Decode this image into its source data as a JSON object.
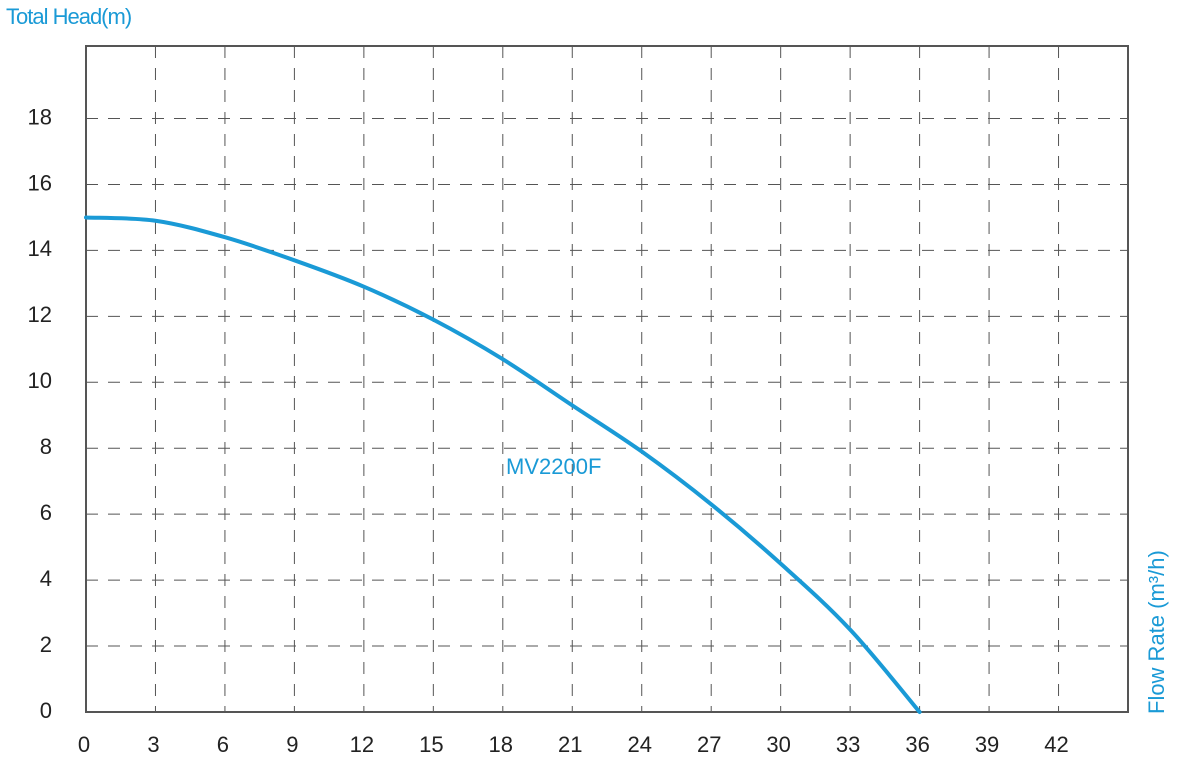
{
  "chart_data": {
    "type": "line",
    "y_label": "Total Head(m)",
    "x_label": "Flow Rate (m³/h)",
    "x": [
      0,
      3,
      6,
      9,
      12,
      15,
      18,
      21,
      24,
      27,
      30,
      33,
      36
    ],
    "series": [
      {
        "name": "MV2200F",
        "color": "#1a9ad6",
        "values": [
          15.0,
          14.9,
          14.4,
          13.7,
          12.9,
          11.9,
          10.7,
          9.3,
          7.9,
          6.3,
          4.5,
          2.5,
          0
        ]
      }
    ],
    "xlim": [
      0,
      45
    ],
    "ylim": [
      0,
      20.2
    ],
    "xticks": [
      0,
      3,
      6,
      9,
      12,
      15,
      18,
      21,
      24,
      27,
      30,
      33,
      36,
      39,
      42
    ],
    "yticks": [
      0,
      2,
      4,
      6,
      8,
      10,
      12,
      14,
      16,
      18
    ],
    "grid": true
  }
}
